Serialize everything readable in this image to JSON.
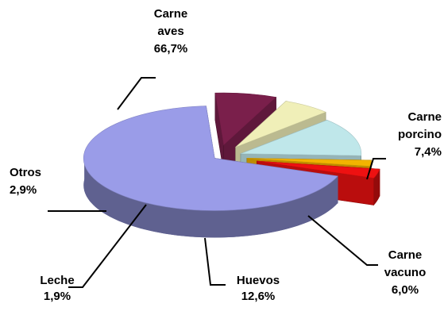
{
  "chart_data": {
    "type": "pie",
    "title": "",
    "slices": [
      {
        "name": "Carne aves",
        "value": 66.7,
        "value_label": "66,7%",
        "color": "#9a9ce8",
        "label_lines": [
          "Carne",
          "aves",
          "66,7%"
        ]
      },
      {
        "name": "Carne porcino",
        "value": 7.4,
        "value_label": "7,4%",
        "color": "#7a1f4b",
        "label_lines": [
          "Carne",
          "porcino",
          "7,4%"
        ]
      },
      {
        "name": "Carne vacuno",
        "value": 6.0,
        "value_label": "6,0%",
        "color": "#f0efb8",
        "label_lines": [
          "Carne",
          "vacuno",
          "6,0%"
        ]
      },
      {
        "name": "Huevos",
        "value": 12.6,
        "value_label": "12,6%",
        "color": "#bfe7ea",
        "label_lines": [
          "Huevos",
          "12,6%"
        ]
      },
      {
        "name": "Leche",
        "value": 1.9,
        "value_label": "1,9%",
        "color": "#f2b400",
        "label_lines": [
          "Leche",
          "1,9%"
        ]
      },
      {
        "name": "Otros",
        "value": 2.9,
        "value_label": "2,9%",
        "color": "#ee1111",
        "label_lines": [
          "Otros",
          "2,9%"
        ]
      }
    ],
    "style": "3d-exploded"
  }
}
